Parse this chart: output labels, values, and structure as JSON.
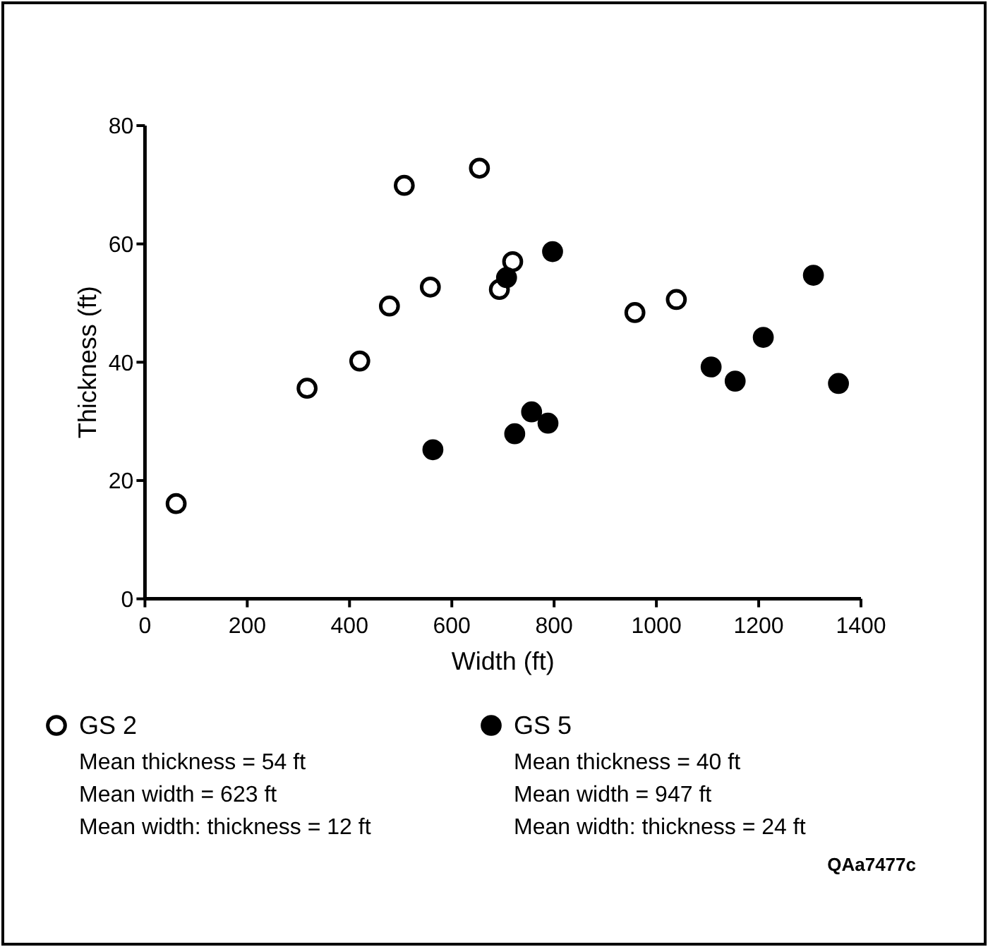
{
  "chart_data": {
    "type": "scatter",
    "xlabel": "Width (ft)",
    "ylabel": "Thickness (ft)",
    "xlim": [
      0,
      1400
    ],
    "xticks": [
      0,
      200,
      400,
      600,
      800,
      1000,
      1200,
      1400
    ],
    "ylim": [
      0,
      80
    ],
    "yticks": [
      0,
      20,
      40,
      60,
      80
    ],
    "marker": "circle",
    "legend": "bottom",
    "grid": false,
    "series": [
      {
        "name": "GS 2",
        "color": "#ffffff",
        "x": [
          61,
          317,
          420,
          478,
          507,
          558,
          654,
          693,
          719,
          958,
          1039
        ],
        "values": [
          16.1,
          35.6,
          40.2,
          49.5,
          69.9,
          52.7,
          72.8,
          52.3,
          57.0,
          48.4,
          50.6
        ]
      },
      {
        "name": "GS 5",
        "color": "#000000",
        "x": [
          563,
          707,
          797,
          756,
          723,
          788,
          1107,
          1154,
          1209,
          1307,
          1356
        ],
        "values": [
          25.2,
          54.3,
          58.7,
          31.6,
          27.9,
          29.7,
          39.2,
          36.8,
          44.2,
          54.7,
          36.4
        ]
      }
    ],
    "annotations": [
      "Mean thickness = 54 ft",
      "Mean width = 623 ft",
      "Mean width: thickness = 12 ft",
      "Mean thickness = 40 ft",
      "Mean width = 947 ft",
      "Mean width: thickness = 24 ft",
      "QAa7477c"
    ]
  }
}
